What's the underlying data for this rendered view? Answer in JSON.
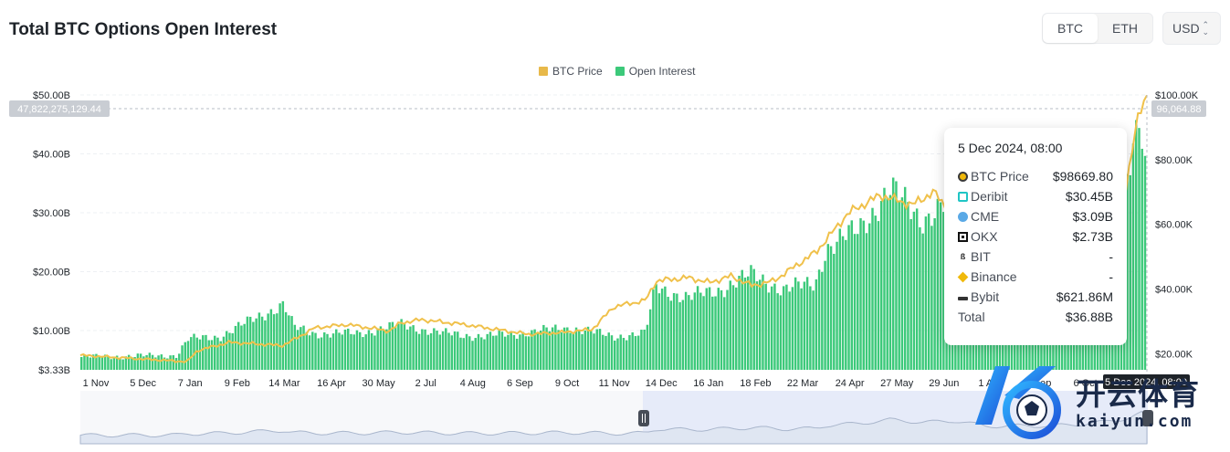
{
  "header": {
    "title": "Total BTC Options Open Interest"
  },
  "asset_toggle": {
    "options": [
      "BTC",
      "ETH"
    ],
    "selected": "BTC"
  },
  "currency_select": {
    "value": "USD"
  },
  "legend": [
    {
      "label": "BTC Price",
      "color": "#f0b90b"
    },
    {
      "label": "Open Interest",
      "color": "#3cc97a"
    }
  ],
  "crosshair": {
    "left_value": "47,822,275,129.44",
    "right_value": "96,064.88"
  },
  "tooltip": {
    "title": "5 Dec 2024, 08:00",
    "rows": [
      {
        "label": "BTC Price",
        "value": "$98669.80",
        "icon": "btc-price-dot-icon"
      },
      {
        "label": "Deribit",
        "value": "$30.45B",
        "icon": "deribit-icon"
      },
      {
        "label": "CME",
        "value": "$3.09B",
        "icon": "cme-icon"
      },
      {
        "label": "OKX",
        "value": "$2.73B",
        "icon": "okx-icon"
      },
      {
        "label": "BIT",
        "value": "-",
        "icon": "bit-icon"
      },
      {
        "label": "Binance",
        "value": "-",
        "icon": "binance-icon"
      },
      {
        "label": "Bybit",
        "value": "$621.86M",
        "icon": "bybit-icon"
      }
    ],
    "total": {
      "label": "Total",
      "value": "$36.88B"
    }
  },
  "watermark": {
    "cn": "开云体育",
    "en": "kaiyun.com"
  },
  "chart_data": {
    "type": "bar",
    "title": "Total BTC Options Open Interest",
    "x_ticks": [
      "1 Nov",
      "5 Dec",
      "7 Jan",
      "9 Feb",
      "14 Mar",
      "16 Apr",
      "30 May",
      "2 Jul",
      "4 Aug",
      "6 Sep",
      "9 Oct",
      "11 Nov",
      "14 Dec",
      "16 Jan",
      "18 Feb",
      "22 Mar",
      "24 Apr",
      "27 May",
      "29 Jun",
      "1 Aug",
      "3 Sep",
      "6 Oct",
      "5 Dec 2024, 08:00"
    ],
    "y_left": {
      "ticks": [
        "$3.33B",
        "$10.00B",
        "$20.00B",
        "$30.00B",
        "$40.00B",
        "$50.00B"
      ],
      "range": [
        3.33,
        50
      ]
    },
    "y_right": {
      "ticks": [
        "$20.00K",
        "$40.00K",
        "$60.00K",
        "$80.00K",
        "$100.00K"
      ],
      "range": [
        15,
        100
      ]
    },
    "series": [
      {
        "name": "Open Interest",
        "axis": "left",
        "color": "#3cc97a",
        "anchors_x": [
          0,
          0.09,
          0.1,
          0.13,
          0.19,
          0.2,
          0.22,
          0.26,
          0.3,
          0.34,
          0.38,
          0.41,
          0.46,
          0.5,
          0.53,
          0.54,
          0.57,
          0.6,
          0.63,
          0.66,
          0.69,
          0.7,
          0.73,
          0.76,
          0.79,
          0.82,
          0.85,
          0.88,
          0.91,
          0.94,
          0.96,
          0.98,
          0.995,
          1.0
        ],
        "values": [
          5.5,
          5.8,
          8.5,
          9.0,
          14.5,
          10.5,
          9.5,
          9.5,
          11.0,
          9.5,
          9.0,
          9.5,
          10.5,
          9.0,
          9.5,
          17.5,
          15.5,
          17.0,
          19.5,
          17.0,
          18.0,
          24.0,
          27.0,
          34.0,
          29.0,
          32.0,
          22.0,
          23.0,
          22.5,
          26.0,
          30.0,
          36.0,
          46.0,
          36.88
        ]
      },
      {
        "name": "BTC Price",
        "axis": "right",
        "color": "#f0b90b",
        "anchors_x": [
          0,
          0.1,
          0.11,
          0.14,
          0.19,
          0.22,
          0.25,
          0.29,
          0.3,
          0.32,
          0.36,
          0.39,
          0.42,
          0.45,
          0.48,
          0.5,
          0.53,
          0.54,
          0.57,
          0.59,
          0.61,
          0.63,
          0.65,
          0.69,
          0.72,
          0.75,
          0.78,
          0.8,
          0.82,
          0.85,
          0.88,
          0.91,
          0.94,
          0.96,
          0.98,
          0.99,
          1.0
        ],
        "values": [
          19.5,
          17.5,
          21.0,
          23.5,
          22.5,
          28.0,
          29.0,
          27.0,
          29.5,
          30.5,
          29.0,
          27.5,
          26.0,
          26.5,
          27.5,
          34.5,
          36.5,
          42.5,
          43.5,
          42.0,
          44.0,
          41.0,
          42.5,
          51.5,
          63.5,
          69.0,
          66.0,
          70.0,
          62.0,
          61.0,
          67.0,
          66.0,
          60.0,
          57.0,
          70.0,
          92.0,
          98.67
        ]
      }
    ]
  }
}
